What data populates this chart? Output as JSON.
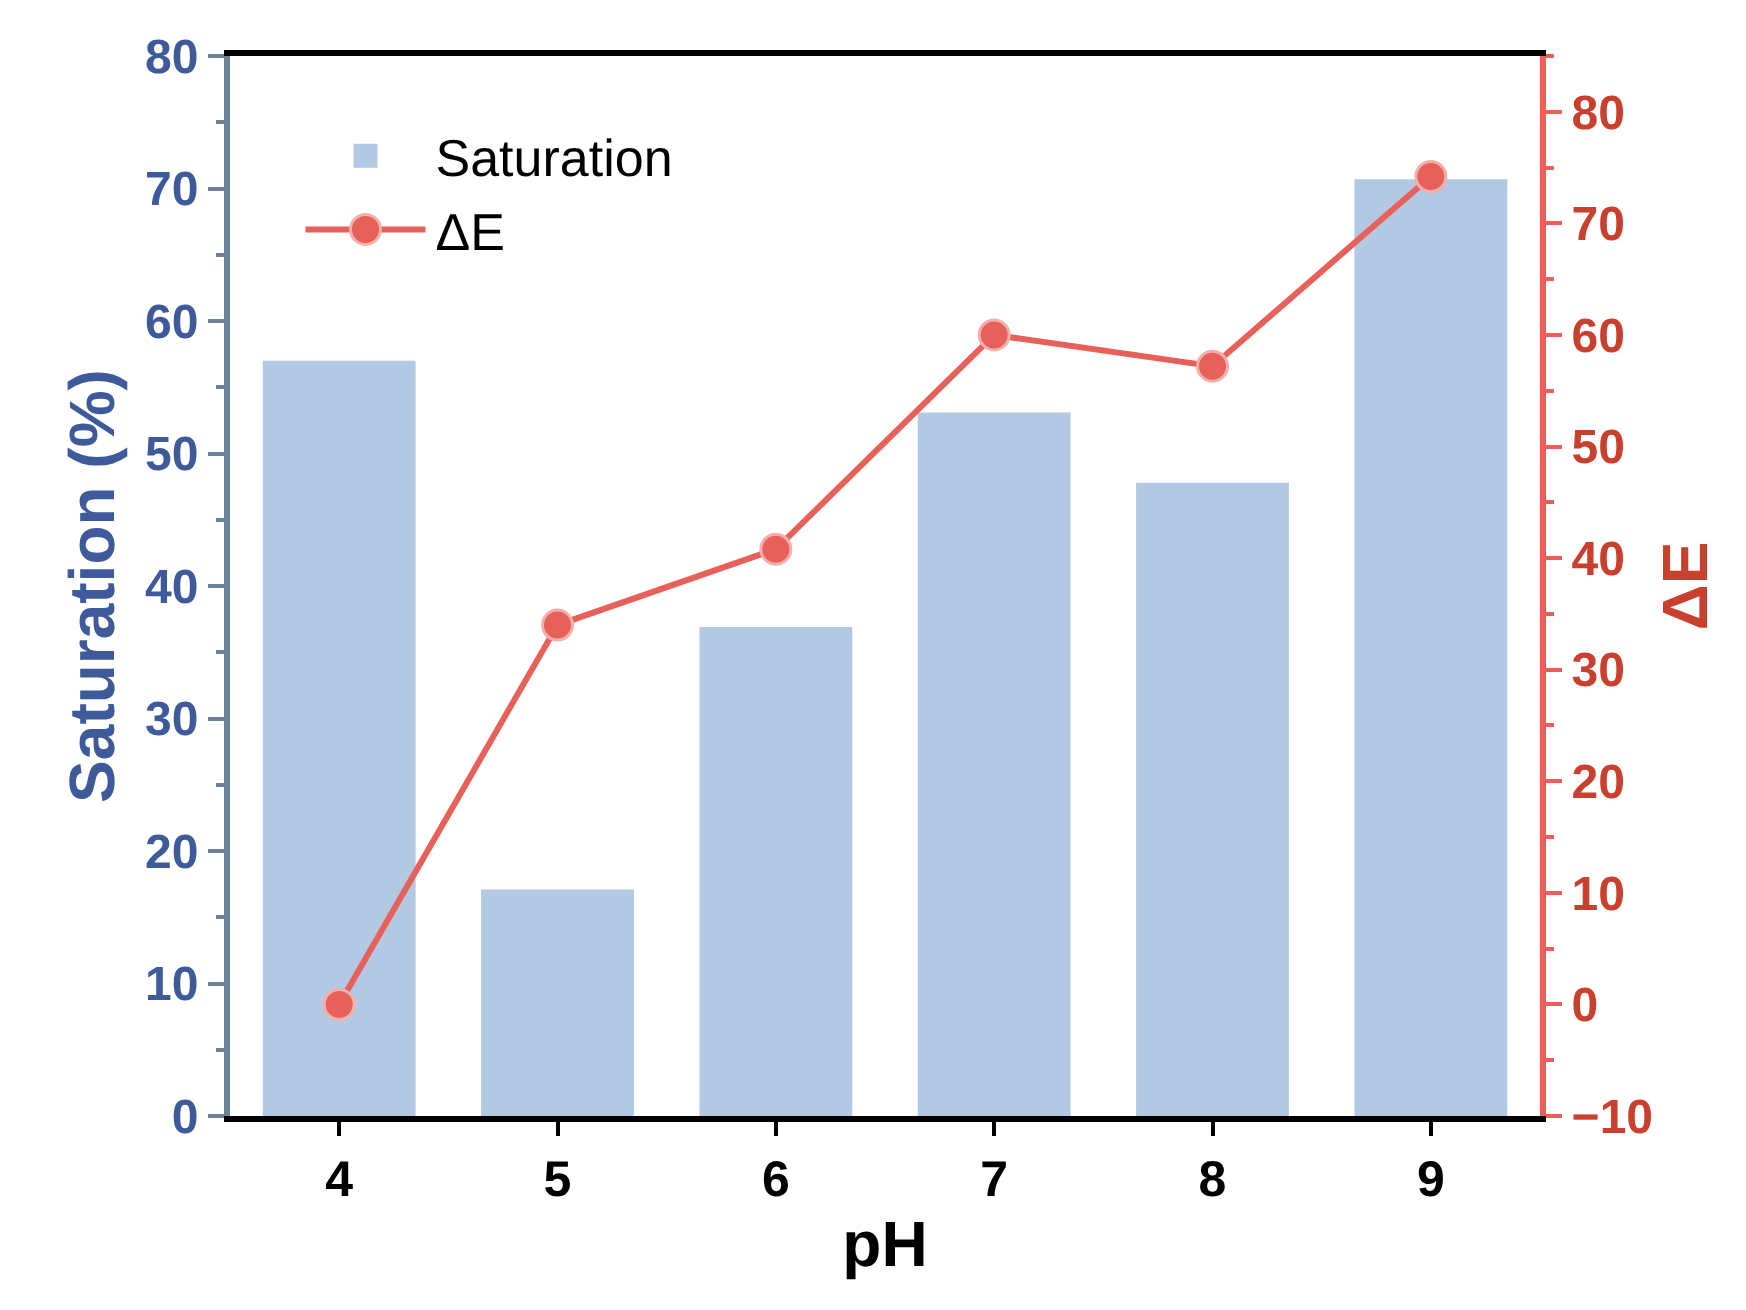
{
  "chart_data": {
    "type": "bar",
    "xlabel": "pH",
    "ylabel": "Saturation (%)",
    "y2label": "ΔE",
    "categories": [
      "4",
      "5",
      "6",
      "7",
      "8",
      "9"
    ],
    "series": [
      {
        "name": "Saturation",
        "color": "#b3c8e2",
        "values": [
          57.0,
          17.1,
          36.9,
          53.1,
          47.8,
          70.7
        ]
      },
      {
        "name": "ΔE",
        "type": "line",
        "axis": "y2",
        "color": "#e8605a",
        "marker": "circle",
        "line_style": "solid",
        "values": [
          0,
          34,
          40.8,
          60,
          57.2,
          74.2
        ]
      }
    ],
    "ylim": [
      0,
      80
    ],
    "yticks": [
      0,
      10,
      20,
      30,
      40,
      50,
      60,
      70,
      80
    ],
    "y2lim": [
      -10,
      85
    ],
    "y2ticks": [
      -10,
      0,
      10,
      20,
      30,
      40,
      50,
      60,
      70,
      80
    ],
    "legend": "top left"
  }
}
